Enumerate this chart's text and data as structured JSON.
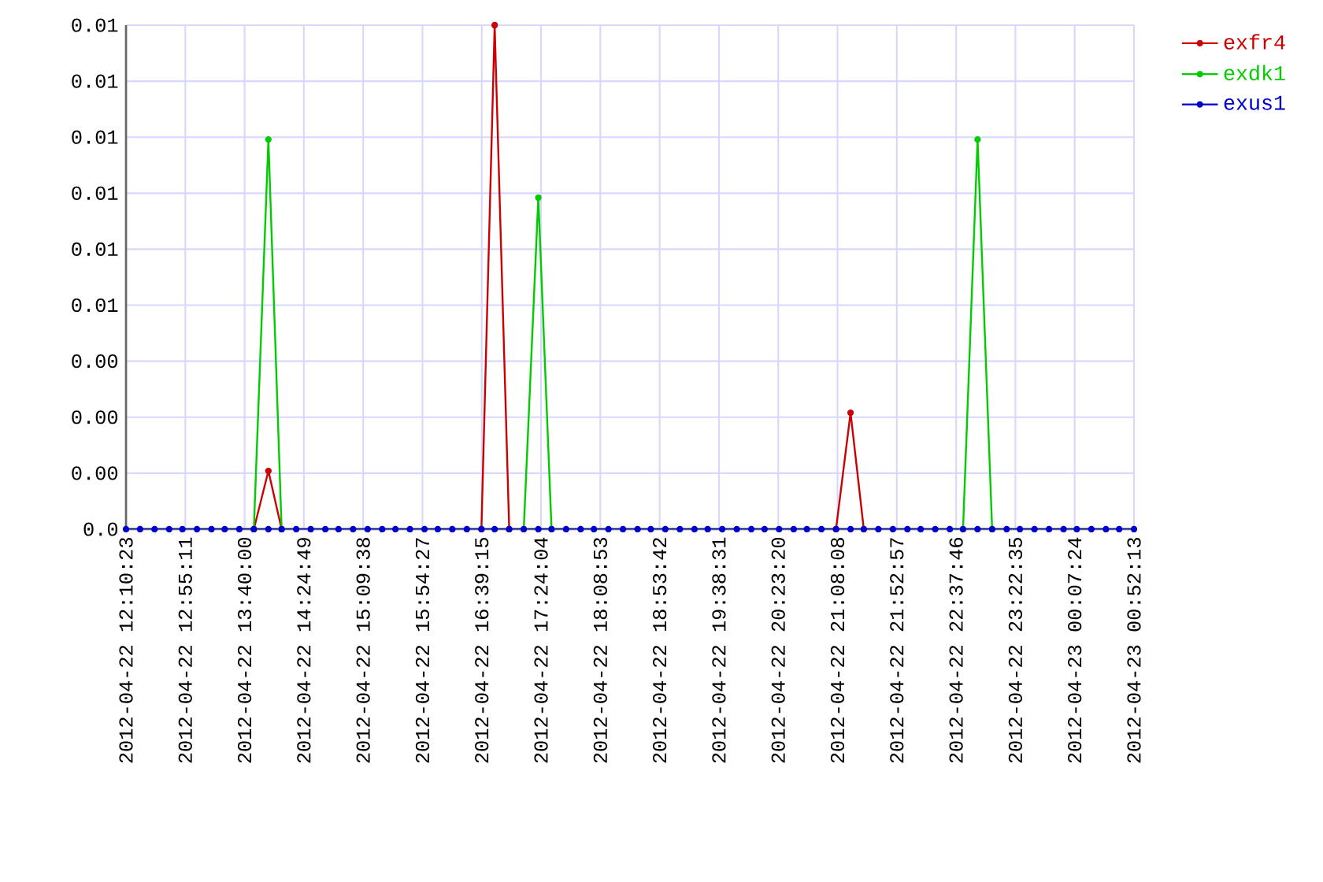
{
  "chart_data": {
    "type": "line",
    "x": [
      "2012-04-22T12:10:23",
      "2012-04-22T12:21:00",
      "2012-04-22T12:32:00",
      "2012-04-22T12:43:00",
      "2012-04-22T12:53:00",
      "2012-04-22T13:04:00",
      "2012-04-22T13:15:00",
      "2012-04-22T13:25:00",
      "2012-04-22T13:36:00",
      "2012-04-22T13:47:00",
      "2012-04-22T13:58:00",
      "2012-04-22T14:08:00",
      "2012-04-22T14:19:00",
      "2012-04-22T14:30:00",
      "2012-04-22T14:41:00",
      "2012-04-22T14:51:00",
      "2012-04-22T15:02:00",
      "2012-04-22T15:13:00",
      "2012-04-22T15:24:00",
      "2012-04-22T15:34:00",
      "2012-04-22T15:45:00",
      "2012-04-22T15:56:00",
      "2012-04-22T16:06:00",
      "2012-04-22T16:17:00",
      "2012-04-22T16:28:00",
      "2012-04-22T16:39:00",
      "2012-04-22T16:49:00",
      "2012-04-22T17:00:00",
      "2012-04-22T17:11:00",
      "2012-04-22T17:22:00",
      "2012-04-22T17:32:00",
      "2012-04-22T17:43:00",
      "2012-04-22T17:54:00",
      "2012-04-22T18:04:00",
      "2012-04-22T18:15:00",
      "2012-04-22T18:26:00",
      "2012-04-22T18:37:00",
      "2012-04-22T18:47:00",
      "2012-04-22T18:58:00",
      "2012-04-22T19:09:00",
      "2012-04-22T19:20:00",
      "2012-04-22T19:30:00",
      "2012-04-22T19:41:00",
      "2012-04-22T19:52:00",
      "2012-04-22T20:03:00",
      "2012-04-22T20:13:00",
      "2012-04-22T20:24:00",
      "2012-04-22T20:35:00",
      "2012-04-22T20:45:00",
      "2012-04-22T20:56:00",
      "2012-04-22T21:07:00",
      "2012-04-22T21:18:00",
      "2012-04-22T21:28:00",
      "2012-04-22T21:39:00",
      "2012-04-22T21:50:00",
      "2012-04-22T22:01:00",
      "2012-04-22T22:11:00",
      "2012-04-22T22:22:00",
      "2012-04-22T22:33:00",
      "2012-04-22T22:43:00",
      "2012-04-22T22:54:00",
      "2012-04-22T23:05:00",
      "2012-04-22T23:16:00",
      "2012-04-22T23:26:00",
      "2012-04-22T23:37:00",
      "2012-04-22T23:48:00",
      "2012-04-22T23:59:00",
      "2012-04-23T00:09:00",
      "2012-04-23T00:20:00",
      "2012-04-23T00:31:00",
      "2012-04-23T00:41:00",
      "2012-04-23T00:52:13"
    ],
    "series": [
      {
        "name": "exfr4",
        "color": "#cc0000",
        "values": [
          null,
          null,
          null,
          null,
          null,
          null,
          null,
          null,
          null,
          0,
          0.0013,
          0,
          null,
          null,
          null,
          null,
          null,
          null,
          null,
          null,
          null,
          null,
          null,
          null,
          null,
          0,
          0.01125,
          0,
          null,
          null,
          null,
          null,
          null,
          null,
          null,
          null,
          null,
          null,
          null,
          null,
          null,
          null,
          null,
          null,
          null,
          null,
          null,
          null,
          null,
          null,
          0,
          0.0026,
          0,
          null,
          null,
          null,
          null,
          null,
          null,
          null,
          null,
          null,
          null,
          null,
          null,
          null,
          null,
          null,
          null,
          null,
          null,
          null
        ]
      },
      {
        "name": "exdk1",
        "color": "#00cc00",
        "values": [
          null,
          null,
          null,
          null,
          null,
          null,
          null,
          null,
          null,
          0,
          0.0087,
          0,
          null,
          null,
          null,
          null,
          null,
          null,
          null,
          null,
          null,
          null,
          null,
          null,
          null,
          null,
          null,
          null,
          0,
          0.0074,
          0,
          null,
          null,
          null,
          null,
          null,
          null,
          null,
          null,
          null,
          null,
          null,
          null,
          null,
          null,
          null,
          null,
          null,
          null,
          null,
          null,
          null,
          null,
          null,
          null,
          null,
          null,
          null,
          null,
          0,
          0.0087,
          0,
          null,
          null,
          null,
          null,
          null,
          null,
          null,
          null,
          null,
          null
        ]
      },
      {
        "name": "exus1",
        "color": "#0000cc",
        "values": [
          0,
          0,
          0,
          0,
          0,
          0,
          0,
          0,
          0,
          0,
          0,
          0,
          0,
          0,
          0,
          0,
          0,
          0,
          0,
          0,
          0,
          0,
          0,
          0,
          0,
          0,
          0,
          0,
          0,
          0,
          0,
          0,
          0,
          0,
          0,
          0,
          0,
          0,
          0,
          0,
          0,
          0,
          0,
          0,
          0,
          0,
          0,
          0,
          0,
          0,
          0,
          0,
          0,
          0,
          0,
          0,
          0,
          0,
          0,
          0,
          0,
          0,
          0,
          0,
          0,
          0,
          0,
          0,
          0,
          0,
          0,
          0
        ]
      }
    ],
    "xlim": [
      "2012-04-22T12:10:23",
      "2012-04-23T00:52:13"
    ],
    "xticks": [
      {
        "value": "2012-04-22T12:10:23",
        "label": "2012-04-22 12:10:23"
      },
      {
        "value": "2012-04-22T12:55:11",
        "label": "2012-04-22 12:55:11"
      },
      {
        "value": "2012-04-22T13:40:00",
        "label": "2012-04-22 13:40:00"
      },
      {
        "value": "2012-04-22T14:24:49",
        "label": "2012-04-22 14:24:49"
      },
      {
        "value": "2012-04-22T15:09:38",
        "label": "2012-04-22 15:09:38"
      },
      {
        "value": "2012-04-22T15:54:27",
        "label": "2012-04-22 15:54:27"
      },
      {
        "value": "2012-04-22T16:39:15",
        "label": "2012-04-22 16:39:15"
      },
      {
        "value": "2012-04-22T17:24:04",
        "label": "2012-04-22 17:24:04"
      },
      {
        "value": "2012-04-22T18:08:53",
        "label": "2012-04-22 18:08:53"
      },
      {
        "value": "2012-04-22T18:53:42",
        "label": "2012-04-22 18:53:42"
      },
      {
        "value": "2012-04-22T19:38:31",
        "label": "2012-04-22 19:38:31"
      },
      {
        "value": "2012-04-22T20:23:20",
        "label": "2012-04-22 20:23:20"
      },
      {
        "value": "2012-04-22T21:08:08",
        "label": "2012-04-22 21:08:08"
      },
      {
        "value": "2012-04-22T21:52:57",
        "label": "2012-04-22 21:52:57"
      },
      {
        "value": "2012-04-22T22:37:46",
        "label": "2012-04-22 22:37:46"
      },
      {
        "value": "2012-04-22T23:22:35",
        "label": "2012-04-22 23:22:35"
      },
      {
        "value": "2012-04-23T00:07:24",
        "label": "2012-04-23 00:07:24"
      },
      {
        "value": "2012-04-23T00:52:13",
        "label": "2012-04-23 00:52:13"
      }
    ],
    "ylim": [
      0,
      0.01125
    ],
    "yticks": [
      {
        "value": 0,
        "label": "0.0"
      },
      {
        "value": 0.00125,
        "label": "0.00"
      },
      {
        "value": 0.0025,
        "label": "0.00"
      },
      {
        "value": 0.00375,
        "label": "0.00"
      },
      {
        "value": 0.005,
        "label": "0.01"
      },
      {
        "value": 0.00625,
        "label": "0.01"
      },
      {
        "value": 0.0075,
        "label": "0.01"
      },
      {
        "value": 0.00875,
        "label": "0.01"
      },
      {
        "value": 0.01,
        "label": "0.01"
      },
      {
        "value": 0.01125,
        "label": "0.01"
      }
    ],
    "grid": true,
    "legend": "top right",
    "marker": "circle",
    "line_style": "solid"
  }
}
